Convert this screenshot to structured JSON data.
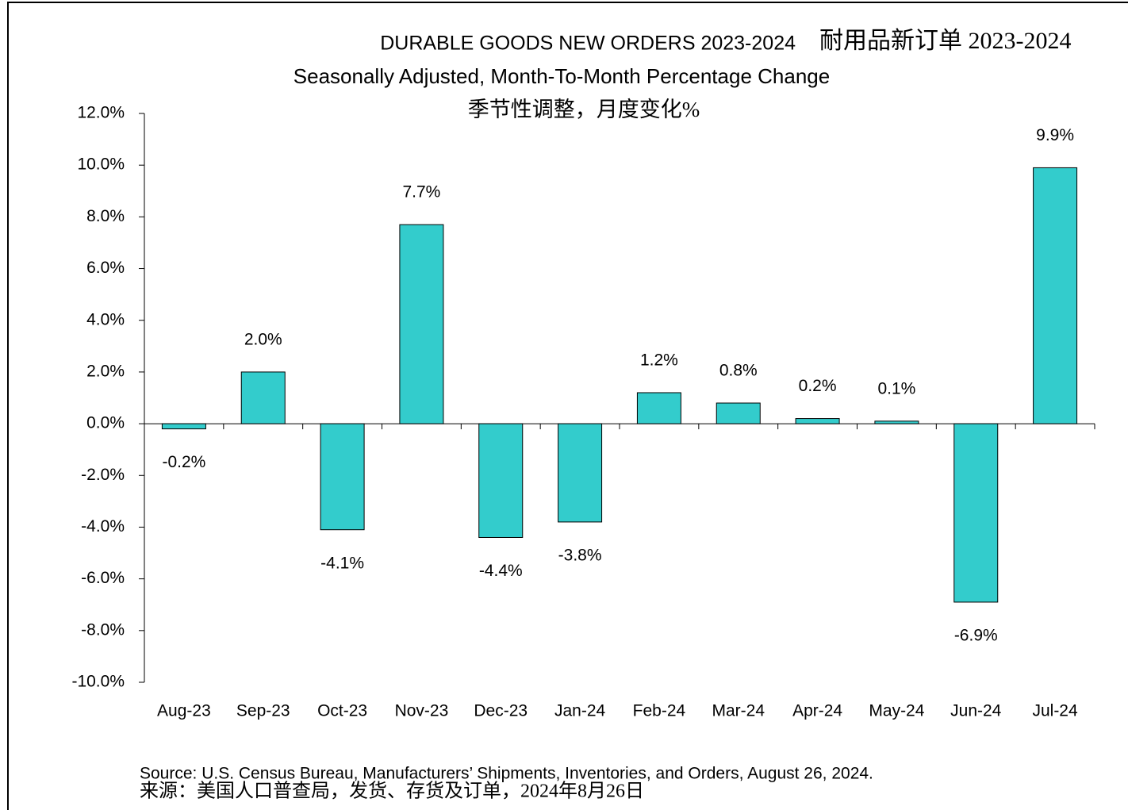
{
  "chart_data": {
    "type": "bar",
    "title": "DURABLE GOODS NEW ORDERS 2023-2024",
    "title_cn": "耐用品新订单 2023-2024",
    "subtitle": "Seasonally Adjusted,  Month-To-Month Percentage Change",
    "subtitle_cn": "季节性调整，月度变化%",
    "categories": [
      "Aug-23",
      "Sep-23",
      "Oct-23",
      "Nov-23",
      "Dec-23",
      "Jan-24",
      "Feb-24",
      "Mar-24",
      "Apr-24",
      "May-24",
      "Jun-24",
      "Jul-24"
    ],
    "values": [
      -0.2,
      2.0,
      -4.1,
      7.7,
      -4.4,
      -3.8,
      1.2,
      0.8,
      0.2,
      0.1,
      -6.9,
      9.9
    ],
    "value_labels": [
      "-0.2%",
      "2.0%",
      "-4.1%",
      "7.7%",
      "-4.4%",
      "-3.8%",
      "1.2%",
      "0.8%",
      "0.2%",
      "0.1%",
      "-6.9%",
      "9.9%"
    ],
    "color": "#33cccc",
    "ylim": [
      -10,
      12
    ],
    "yticks": [
      {
        "value": -10,
        "label": "-10.0%"
      },
      {
        "value": -8,
        "label": "-8.0%"
      },
      {
        "value": -6,
        "label": "-6.0%"
      },
      {
        "value": -4,
        "label": "-4.0%"
      },
      {
        "value": -2,
        "label": "-2.0%"
      },
      {
        "value": 0,
        "label": "0.0%"
      },
      {
        "value": 2,
        "label": "2.0%"
      },
      {
        "value": 4,
        "label": "4.0%"
      },
      {
        "value": 6,
        "label": "6.0%"
      },
      {
        "value": 8,
        "label": "8.0%"
      },
      {
        "value": 10,
        "label": "10.0%"
      },
      {
        "value": 12,
        "label": "12.0%"
      }
    ],
    "source": "Source: U.S. Census Bureau, Manufacturers’ Shipments, Inventories, and Orders, August 26, 2024.",
    "source_cn": "来源：美国人口普查局，发货、存货及订单，2024年8月26日"
  }
}
